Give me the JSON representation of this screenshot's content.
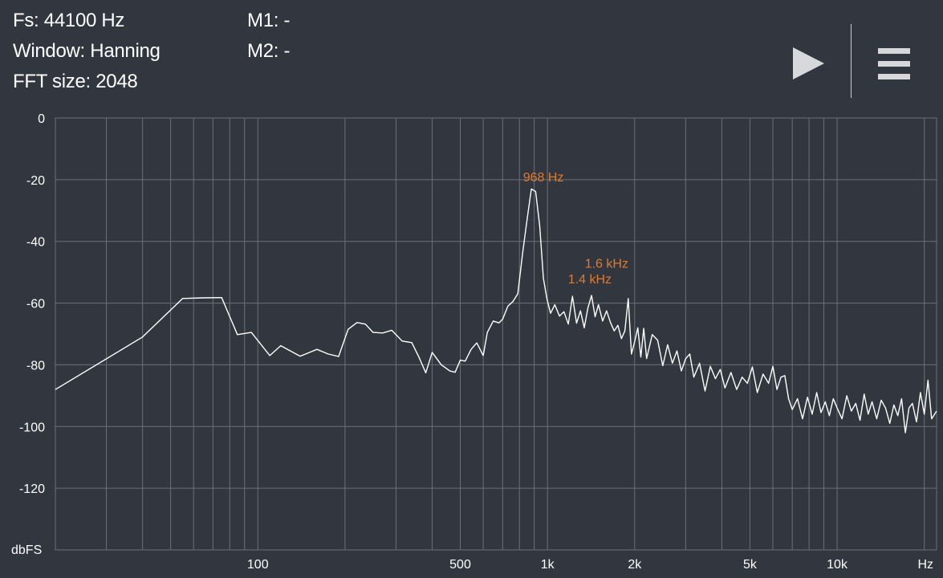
{
  "header": {
    "fs_text": "Fs: 44100 Hz",
    "window_text": "Window: Hanning",
    "fft_text": "FFT size: 2048",
    "m1_text": "M1: -",
    "m2_text": "M2: -"
  },
  "controls": {
    "play": "play-icon",
    "menu": "menu-icon"
  },
  "colors": {
    "background": "#31363f",
    "grid": "#6b7078",
    "trace": "#ffffff",
    "marker": "#e07a2f",
    "text": "#ffffff"
  },
  "chart_data": {
    "type": "line",
    "xscale": "log",
    "xlim": [
      20,
      22050
    ],
    "ylim": [
      -140,
      0
    ],
    "ylabel": "dbFS",
    "xlabel": "Hz",
    "yticks": [
      0,
      -20,
      -40,
      -60,
      -80,
      -100,
      -120
    ],
    "xticks": [
      {
        "value": 100,
        "label": "100"
      },
      {
        "value": 500,
        "label": "500"
      },
      {
        "value": 1000,
        "label": "1k"
      },
      {
        "value": 2000,
        "label": "2k"
      },
      {
        "value": 5000,
        "label": "5k"
      },
      {
        "value": 10000,
        "label": "10k"
      }
    ],
    "grid": true,
    "annotations": [
      {
        "text": "968 Hz",
        "x": 968,
        "y": -19
      },
      {
        "text": "1.6  kHz",
        "x": 1600,
        "y": -47
      },
      {
        "text": "1.4  kHz",
        "x": 1400,
        "y": -52
      }
    ],
    "series": [
      {
        "x": [
          20,
          40,
          55,
          65,
          75,
          85,
          95,
          110,
          120,
          140,
          160,
          175,
          190,
          205,
          220,
          235,
          250,
          270,
          290,
          315,
          340,
          360,
          380,
          400,
          430,
          460,
          480,
          500,
          520,
          545,
          570,
          600,
          620,
          650,
          680,
          700,
          730,
          760,
          790,
          820,
          850,
          880,
          910,
          940,
          968,
          995,
          1025,
          1060,
          1100,
          1140,
          1180,
          1220,
          1260,
          1300,
          1340,
          1380,
          1420,
          1460,
          1500,
          1550,
          1600,
          1650,
          1700,
          1750,
          1800,
          1850,
          1900,
          1950,
          2000,
          2050,
          2100,
          2150,
          2200,
          2300,
          2400,
          2500,
          2600,
          2700,
          2800,
          2900,
          3000,
          3100,
          3200,
          3350,
          3500,
          3650,
          3800,
          3950,
          4100,
          4300,
          4500,
          4700,
          4900,
          5100,
          5300,
          5550,
          5800,
          6000,
          6200,
          6400,
          6600,
          6800,
          7000,
          7300,
          7600,
          7900,
          8200,
          8500,
          8800,
          9100,
          9400,
          9700,
          10000,
          10400,
          10800,
          11200,
          11600,
          12000,
          12400,
          12800,
          13200,
          13700,
          14200,
          14700,
          15200,
          15700,
          16200,
          16700,
          17200,
          17700,
          18200,
          18800,
          19400,
          20000,
          20600,
          21200,
          22050
        ],
        "values": [
          -88,
          -71,
          -58.5,
          -58.3,
          -58.2,
          -70.2,
          -69.5,
          -77,
          -73.8,
          -77.2,
          -75,
          -76.5,
          -77.3,
          -68.5,
          -66.3,
          -66.8,
          -69.5,
          -69.7,
          -68.8,
          -72.3,
          -72.8,
          -77.5,
          -82.6,
          -76,
          -80,
          -82,
          -82.4,
          -78.5,
          -78.8,
          -75,
          -72.9,
          -77,
          -69.5,
          -65.8,
          -66.4,
          -65.2,
          -61,
          -59.5,
          -57,
          -44,
          -33,
          -23,
          -23.8,
          -35,
          -52,
          -58.5,
          -63.3,
          -60.5,
          -64.2,
          -62.8,
          -66.8,
          -57.8,
          -66.5,
          -62.5,
          -68,
          -61.5,
          -57.5,
          -64.4,
          -60.5,
          -65.8,
          -62.5,
          -66.3,
          -69,
          -67.2,
          -71.5,
          -69,
          -58.5,
          -76.5,
          -72.5,
          -68,
          -77.5,
          -68.2,
          -78,
          -70.2,
          -72,
          -80.3,
          -73.5,
          -79.5,
          -75.5,
          -82,
          -78,
          -76.5,
          -84,
          -79.5,
          -88.5,
          -80.5,
          -84.5,
          -81.5,
          -87.5,
          -82.5,
          -88,
          -84,
          -86,
          -80.7,
          -89,
          -83,
          -86,
          -80.5,
          -88,
          -84,
          -83.5,
          -91,
          -94.5,
          -91,
          -97.5,
          -90.5,
          -96,
          -89,
          -95.5,
          -92,
          -96.5,
          -91,
          -94,
          -97.5,
          -90,
          -95,
          -92.5,
          -98,
          -89.5,
          -96,
          -92,
          -97.5,
          -91.5,
          -94,
          -99,
          -93,
          -96.5,
          -91,
          -102,
          -94,
          -92.5,
          -98.5,
          -89,
          -96,
          -85,
          -97.5,
          -95
        ]
      }
    ]
  }
}
